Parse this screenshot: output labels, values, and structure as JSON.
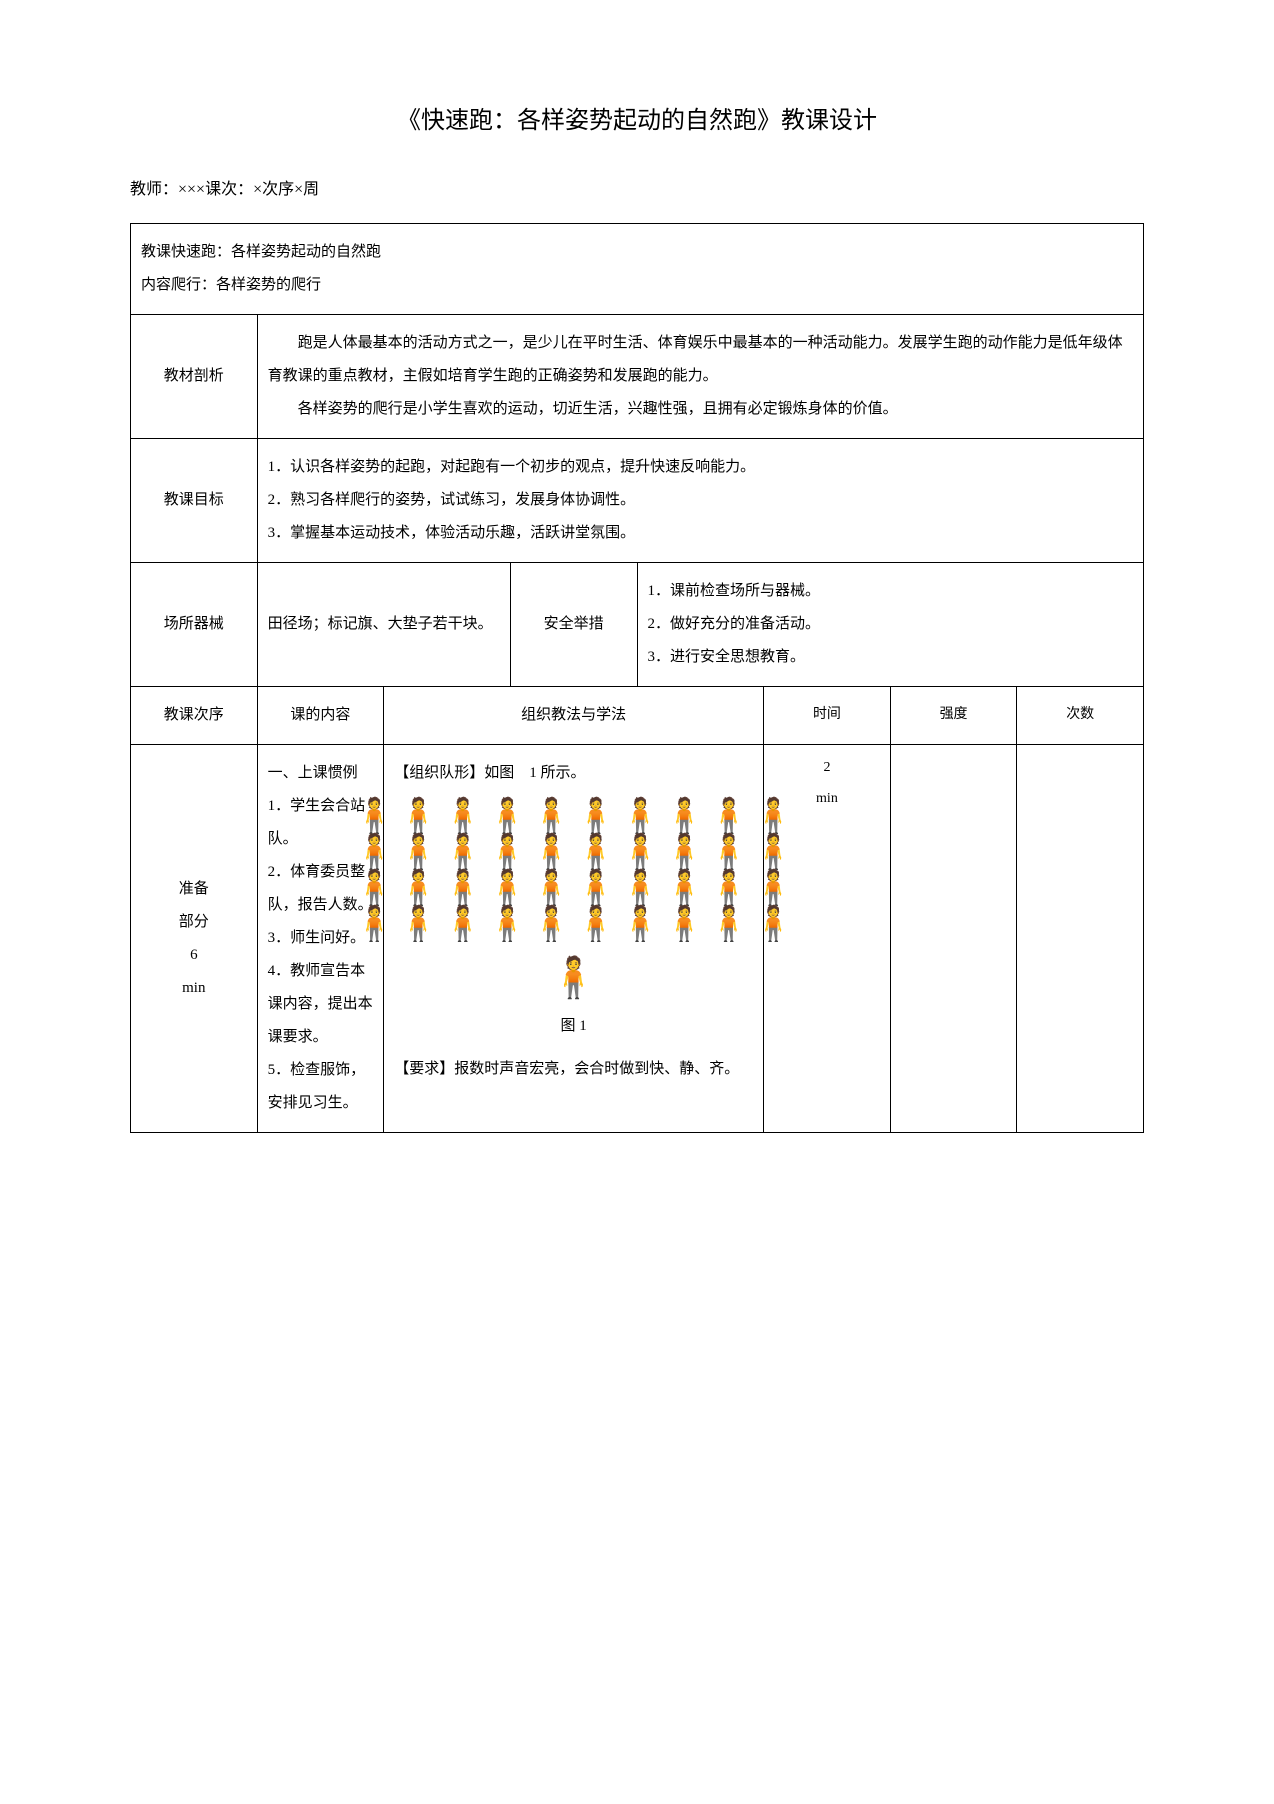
{
  "title": "《快速跑：各样姿势起动的自然跑》教课设计",
  "teacher_line": "教师：×××课次：×次序×周",
  "row1": {
    "line1": "教课快速跑：各样姿势起动的自然跑",
    "line2": "内容爬行：各样姿势的爬行"
  },
  "analysis": {
    "label": "教材剖析",
    "p1": "跑是人体最基本的活动方式之一，是少儿在平时生活、体育娱乐中最基本的一种活动能力。发展学生跑的动作能力是低年级体育教课的重点教材，主假如培育学生跑的正确姿势和发展跑的能力。",
    "p2": "各样姿势的爬行是小学生喜欢的运动，切近生活，兴趣性强，且拥有必定锻炼身体的价值。"
  },
  "goals": {
    "label": "教课目标",
    "g1": "1．认识各样姿势的起跑，对起跑有一个初步的观点，提升快速反响能力。",
    "g2": "2．熟习各样爬行的姿势，试试练习，发展身体协调性。",
    "g3": "3．掌握基本运动技术，体验活动乐趣，活跃讲堂氛围。"
  },
  "venue": {
    "label": "场所器械",
    "content": "田径场；标记旗、大垫子若干块。"
  },
  "safety": {
    "label": "安全举措",
    "s1": "1．课前检查场所与器械。",
    "s2": "2．做好充分的准备活动。",
    "s3": "3．进行安全思想教育。"
  },
  "header": {
    "col1": "教课次序",
    "col2": "课的内容",
    "col3": "组织教法与学法",
    "col4": "时间",
    "col5": "强度",
    "col6": "次数"
  },
  "prep": {
    "label_l1": "准备",
    "label_l2": "部分",
    "label_l3": "6",
    "label_l4": "min",
    "content_title": "一、上课惯例",
    "c1": "1．学生会合站队。",
    "c2": "2．体育委员整队，报告人数。",
    "c3": "3．师生问好。",
    "c4": "4．教师宣告本课内容，提出本课要求。",
    "c5": "5．检查服饰，安排见习生。",
    "org_title": "【组织队形】如图　1 所示。",
    "fig_label": "图 1",
    "req": "【要求】报数时声音宏亮，会合时做到快、静、齐。",
    "time_v1": "2",
    "time_v2": "min"
  },
  "figure": {
    "student_icon": "🧍",
    "teacher_icon": "🧍",
    "rows": 4,
    "cols": 10
  }
}
